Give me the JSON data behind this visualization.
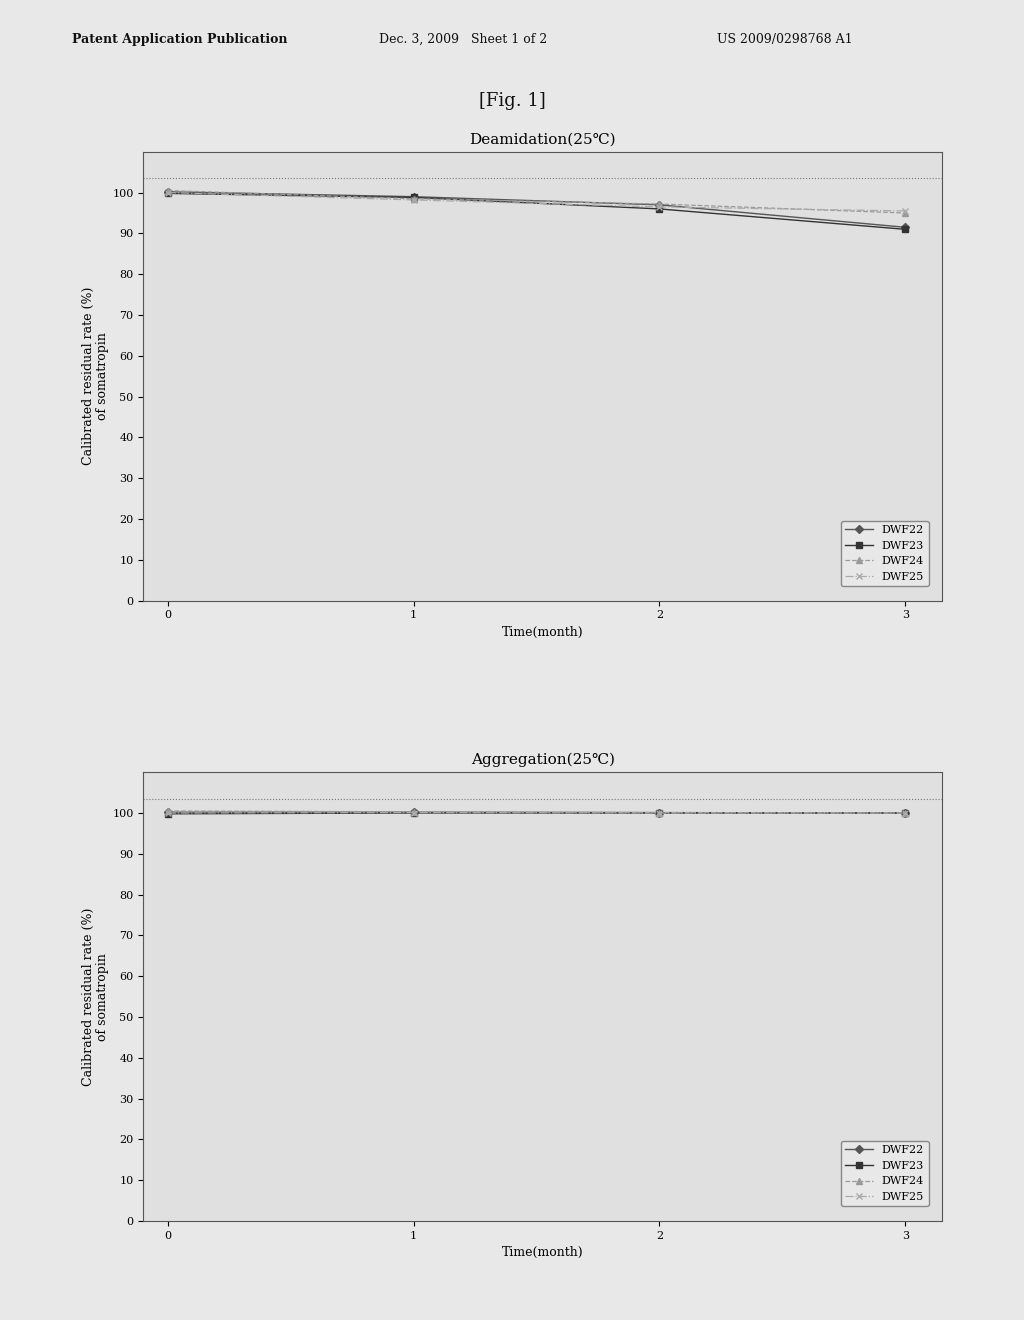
{
  "fig_label": "[Fig. 1]",
  "patent_header_left": "Patent Application Publication",
  "patent_header_mid": "Dec. 3, 2009   Sheet 1 of 2",
  "patent_header_right": "US 2009/0298768 A1",
  "plot1": {
    "title": "Deamidation(25℃)",
    "xlabel": "Time(month)",
    "ylabel": "Calibrated residual rate (%)\nof somatropin",
    "xlim": [
      -0.1,
      3.15
    ],
    "ylim": [
      0,
      110
    ],
    "yticks": [
      0,
      10,
      20,
      30,
      40,
      50,
      60,
      70,
      80,
      90,
      100
    ],
    "xticks": [
      0,
      1,
      2,
      3
    ],
    "series": [
      {
        "label": "DWF22",
        "x": [
          0,
          1,
          2,
          3
        ],
        "y": [
          100.2,
          99.0,
          97.0,
          91.5
        ],
        "color": "#555555",
        "marker": "D",
        "linestyle": "-",
        "linewidth": 1.0
      },
      {
        "label": "DWF23",
        "x": [
          0,
          1,
          2,
          3
        ],
        "y": [
          99.8,
          98.8,
          96.0,
          91.0
        ],
        "color": "#333333",
        "marker": "s",
        "linestyle": "-",
        "linewidth": 1.0
      },
      {
        "label": "DWF24",
        "x": [
          0,
          1,
          2,
          3
        ],
        "y": [
          100.5,
          98.5,
          97.2,
          95.0
        ],
        "color": "#999999",
        "marker": "^",
        "linestyle": "--",
        "linewidth": 0.9
      },
      {
        "label": "DWF25",
        "x": [
          0,
          1,
          2,
          3
        ],
        "y": [
          100.0,
          98.2,
          96.5,
          95.5
        ],
        "color": "#aaaaaa",
        "marker": "x",
        "linestyle": "-.",
        "linewidth": 0.9
      }
    ],
    "top_dashed_y": 103.5,
    "legend_loc": "lower right"
  },
  "plot2": {
    "title": "Aggregation(25℃)",
    "xlabel": "Time(month)",
    "ylabel": "Calibrated residual rate (%)\nof somatropin",
    "xlim": [
      -0.1,
      3.15
    ],
    "ylim": [
      0,
      110
    ],
    "yticks": [
      0,
      10,
      20,
      30,
      40,
      50,
      60,
      70,
      80,
      90,
      100
    ],
    "xticks": [
      0,
      1,
      2,
      3
    ],
    "series": [
      {
        "label": "DWF22",
        "x": [
          0,
          1,
          2,
          3
        ],
        "y": [
          100.2,
          100.2,
          100.1,
          100.0
        ],
        "color": "#555555",
        "marker": "D",
        "linestyle": "-",
        "linewidth": 1.0
      },
      {
        "label": "DWF23",
        "x": [
          0,
          1,
          2,
          3
        ],
        "y": [
          99.8,
          100.0,
          100.0,
          100.0
        ],
        "color": "#333333",
        "marker": "s",
        "linestyle": "-",
        "linewidth": 1.0
      },
      {
        "label": "DWF24",
        "x": [
          0,
          1,
          2,
          3
        ],
        "y": [
          100.5,
          100.3,
          100.1,
          100.0
        ],
        "color": "#999999",
        "marker": "^",
        "linestyle": "--",
        "linewidth": 0.9
      },
      {
        "label": "DWF25",
        "x": [
          0,
          1,
          2,
          3
        ],
        "y": [
          100.0,
          100.1,
          100.0,
          100.0
        ],
        "color": "#aaaaaa",
        "marker": "x",
        "linestyle": "-.",
        "linewidth": 0.9
      }
    ],
    "top_dashed_y": 103.5,
    "legend_loc": "lower right"
  },
  "background_color": "#e8e8e8",
  "plot_bg_color": "#e0e0e0",
  "text_color": "#111111",
  "font_size_title": 11,
  "font_size_label": 9,
  "font_size_tick": 8,
  "font_size_legend": 8,
  "font_size_header": 9,
  "font_size_figlabel": 13
}
